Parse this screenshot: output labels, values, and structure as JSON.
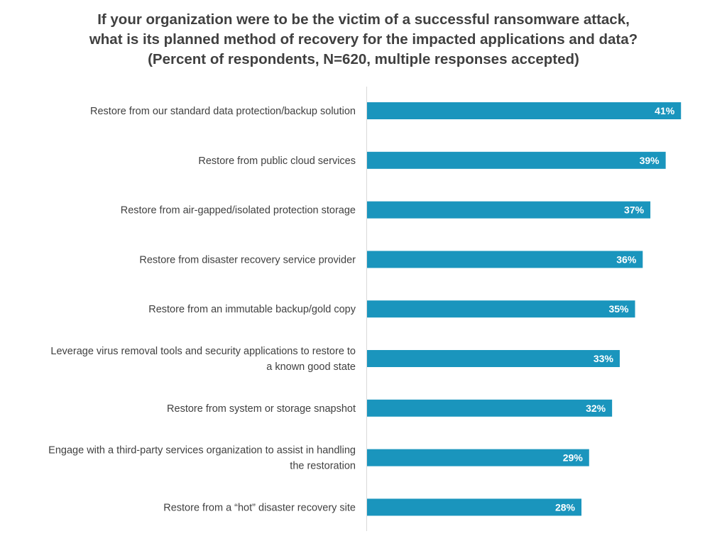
{
  "chart_data": {
    "type": "bar",
    "orientation": "horizontal",
    "title": [
      "If your organization were to be the victim of a successful ransomware attack,",
      "what is its planned method of recovery for the impacted applications and data?",
      "(Percent of respondents, N=620, multiple responses accepted)"
    ],
    "categories": [
      [
        "Restore from our standard data protection/backup solution"
      ],
      [
        "Restore from public cloud services"
      ],
      [
        "Restore from air-gapped/isolated protection storage"
      ],
      [
        "Restore from disaster recovery service provider"
      ],
      [
        "Restore from an immutable backup/gold copy"
      ],
      [
        "Leverage virus removal tools and security applications to restore to",
        "a known good state"
      ],
      [
        "Restore from system or storage snapshot"
      ],
      [
        "Engage with a third-party services organization to assist in handling",
        "the restoration"
      ],
      [
        "Restore from a “hot” disaster recovery site"
      ]
    ],
    "values": [
      41,
      39,
      37,
      36,
      35,
      33,
      32,
      29,
      28
    ],
    "data_labels": [
      "41%",
      "39%",
      "37%",
      "36%",
      "35%",
      "33%",
      "32%",
      "29%",
      "28%"
    ],
    "unit": "%",
    "xlim": [
      0,
      42
    ],
    "bar_color": "#1a95bd",
    "grid": false,
    "legend": "none"
  }
}
